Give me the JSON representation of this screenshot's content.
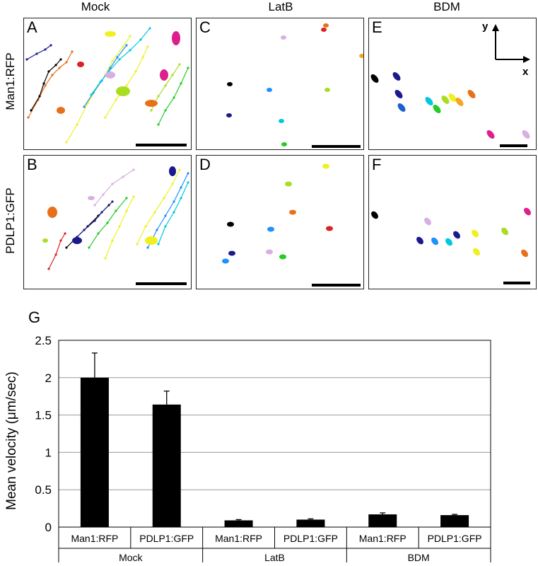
{
  "columns": [
    "Mock",
    "LatB",
    "BDM"
  ],
  "rows": [
    "Man1:RFP",
    "PDLP1:GFP"
  ],
  "panels": [
    {
      "letter": "A"
    },
    {
      "letter": "C"
    },
    {
      "letter": "E"
    },
    {
      "letter": "B"
    },
    {
      "letter": "D"
    },
    {
      "letter": "F"
    }
  ],
  "axis_indicator": {
    "y": "y",
    "x": "x"
  },
  "colors": {
    "bar": "#000000",
    "tracks": [
      "#000000",
      "#1a1a8c",
      "#1f5fd0",
      "#1e90ff",
      "#00c8e0",
      "#22cc22",
      "#aadd22",
      "#f0f020",
      "#f5a623",
      "#e8701a",
      "#dd2020",
      "#dd1e8c",
      "#d8b0e0"
    ]
  },
  "chart_data": {
    "type": "bar",
    "panel_label": "G",
    "ylabel": "Mean velocity (μm/sec)",
    "ylim": [
      0,
      2.5
    ],
    "yticks": [
      "0",
      "0.5",
      "1",
      "1.5",
      "2",
      "2.5"
    ],
    "grid": true,
    "categories": [
      "Man1:RFP",
      "PDLP1:GFP",
      "Man1:RFP",
      "PDLP1:GFP",
      "Man1:RFP",
      "PDLP1:GFP"
    ],
    "groups": [
      "Mock",
      "LatB",
      "BDM"
    ],
    "values": [
      2.0,
      1.64,
      0.09,
      0.1,
      0.17,
      0.16
    ],
    "errors": [
      0.33,
      0.18,
      0.01,
      0.01,
      0.02,
      0.01
    ]
  }
}
